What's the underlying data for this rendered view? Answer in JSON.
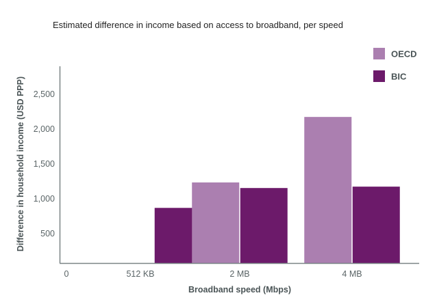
{
  "chart_data": {
    "type": "bar",
    "title": "Estimated difference in income based on access to broadband, per speed",
    "xlabel": "Broadband speed (Mbps)",
    "ylabel": "Difference in household income (USD PPP)",
    "categories": [
      "512 KB",
      "2 MB",
      "4 MB"
    ],
    "zero_label": "0",
    "y_ticks": [
      500,
      1000,
      1500,
      2000,
      2500
    ],
    "y_tick_labels": [
      "500",
      "1,000",
      "1,500",
      "2,000",
      "2,500"
    ],
    "ylim": [
      0,
      2800
    ],
    "grid": false,
    "legend_position": "top-right",
    "series": [
      {
        "name": "OECD",
        "color": "#ab7fb0",
        "values": [
          null,
          1235,
          2175
        ]
      },
      {
        "name": "BIC",
        "color": "#6c1a6a",
        "values": [
          870,
          1155,
          1175
        ]
      }
    ]
  }
}
